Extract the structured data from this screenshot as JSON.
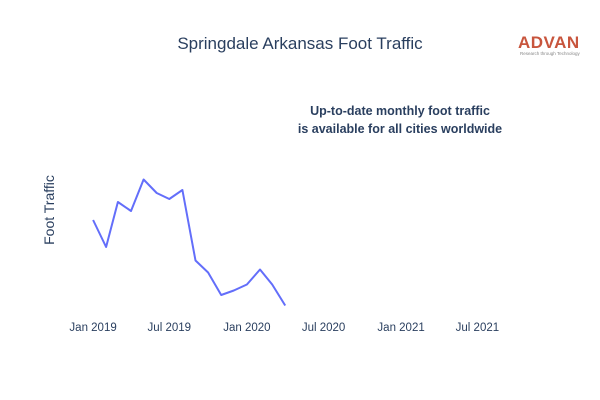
{
  "title": "Springdale Arkansas Foot Traffic",
  "logo": {
    "word": "ADVAN",
    "tagline": "Research through Technology"
  },
  "annotation": {
    "line1": "Up-to-date monthly foot traffic",
    "line2": "is available for all cities worldwide"
  },
  "colors": {
    "line": "#636efa",
    "text": "#2a3f5f",
    "brand": "#c8553d"
  },
  "chart_data": {
    "type": "line",
    "title": "Springdale Arkansas Foot Traffic",
    "ylabel": "Foot Traffic",
    "xlabel": "",
    "x_range": [
      "2018-12-01",
      "2021-10-10"
    ],
    "y_range": [
      0,
      100
    ],
    "y_tick_labels_shown": false,
    "grid": false,
    "x_ticks": [
      "Jan 2019",
      "Jul 2019",
      "Jan 2020",
      "Jul 2020",
      "Jan 2021",
      "Jul 2021"
    ],
    "x_tick_dates": [
      "2019-01-01",
      "2019-07-01",
      "2020-01-01",
      "2020-07-01",
      "2021-01-01",
      "2021-07-01"
    ],
    "series": [
      {
        "x": [
          "2019-01-01",
          "2019-02-01",
          "2019-03-01",
          "2019-04-01",
          "2019-05-01",
          "2019-06-01",
          "2019-07-01",
          "2019-08-01",
          "2019-09-01",
          "2019-10-01",
          "2019-11-01",
          "2019-12-01",
          "2020-01-01",
          "2020-02-01",
          "2020-03-01",
          "2020-04-01"
        ],
        "values": [
          60,
          42,
          72,
          66,
          87,
          78,
          74,
          80,
          33,
          25,
          10,
          13,
          17,
          27,
          17,
          3
        ]
      }
    ]
  }
}
